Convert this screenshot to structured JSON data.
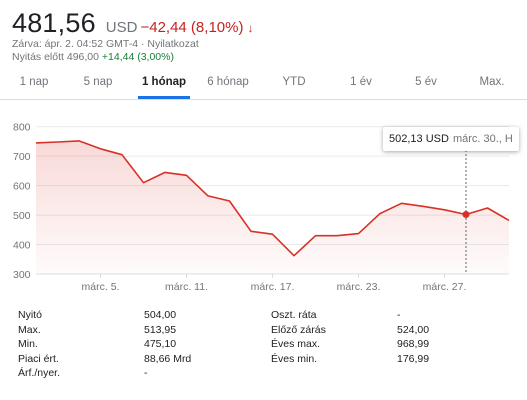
{
  "header": {
    "price": "481,56",
    "currency": "USD",
    "change": "−42,44 (8,10%)",
    "change_color": "#c5221f",
    "arrow": "↓",
    "close_info": "Zárva: ápr. 2. 04:52 GMT-4 · Nyilatkozat",
    "premarket_label": "Nyitás előtt 496,00",
    "premarket_change": "+14,44 (3,00%)"
  },
  "tabs": [
    "1 nap",
    "5 nap",
    "1 hónap",
    "6 hónap",
    "YTD",
    "1 év",
    "5 év",
    "Max."
  ],
  "active_tab": 2,
  "accent_color": "#1a73e8",
  "tooltip": {
    "price": "502,13 USD",
    "date": "márc. 30., H"
  },
  "chart_data": {
    "type": "area",
    "x": [
      "márc. 2.",
      "márc. 3.",
      "márc. 4.",
      "márc. 5.",
      "márc. 6.",
      "márc. 9.",
      "márc. 10.",
      "márc. 11.",
      "márc. 12.",
      "márc. 13.",
      "márc. 16.",
      "márc. 17.",
      "márc. 18.",
      "márc. 19.",
      "márc. 20.",
      "márc. 23.",
      "márc. 24.",
      "márc. 25.",
      "márc. 26.",
      "márc. 27.",
      "márc. 30.",
      "márc. 31.",
      "ápr. 1."
    ],
    "values": [
      745,
      748,
      752,
      725,
      705,
      610,
      645,
      635,
      565,
      548,
      445,
      435,
      362,
      430,
      430,
      437,
      505,
      540,
      530,
      518,
      502,
      524,
      482
    ],
    "selected_index": 20,
    "y_ticks": [
      300,
      400,
      500,
      600,
      700,
      800
    ],
    "ylim": [
      300,
      850
    ],
    "x_ticks": [
      "márc. 5.",
      "márc. 11.",
      "márc. 17.",
      "márc. 23.",
      "márc. 27."
    ],
    "x_tick_indices": [
      3,
      7,
      11,
      15,
      19
    ],
    "line_color": "#d93025",
    "grid": true
  },
  "stats": {
    "left": [
      {
        "label": "Nyitó",
        "value": "504,00"
      },
      {
        "label": "Max.",
        "value": "513,95"
      },
      {
        "label": "Min.",
        "value": "475,10"
      },
      {
        "label": "Piaci ért.",
        "value": "88,66 Mrd"
      },
      {
        "label": "Árf./nyer.",
        "value": "-"
      }
    ],
    "right": [
      {
        "label": "Oszt. ráta",
        "value": "-"
      },
      {
        "label": "Előző zárás",
        "value": "524,00"
      },
      {
        "label": "Éves max.",
        "value": "968,99"
      },
      {
        "label": "Éves min.",
        "value": "176,99"
      }
    ]
  }
}
